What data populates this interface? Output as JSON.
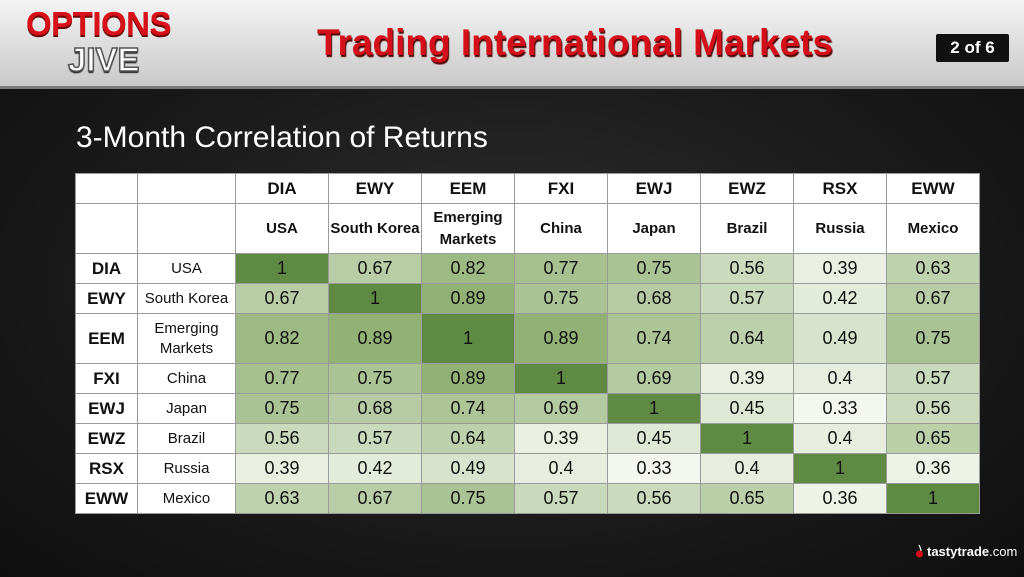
{
  "header": {
    "logo_line1": "OPTIONS",
    "logo_line2": "JIVE",
    "title": "Trading International Markets",
    "slide_counter": "2 of 6"
  },
  "subtitle": "3-Month Correlation of Returns",
  "footer": {
    "brand": "tastytrade",
    "brand_suffix": ".com"
  },
  "colors": {
    "title_red": "#d40f1a",
    "cell_high": "#5f8a44",
    "cell_low": "#f3f7ef"
  },
  "chart_data": {
    "type": "table",
    "title": "3-Month Correlation of Returns",
    "tickers": [
      "DIA",
      "EWY",
      "EEM",
      "FXI",
      "EWJ",
      "EWZ",
      "RSX",
      "EWW"
    ],
    "names": [
      "USA",
      "South Korea",
      "Emerging Markets",
      "China",
      "Japan",
      "Brazil",
      "Russia",
      "Mexico"
    ],
    "values": [
      [
        "1",
        "0.67",
        "0.82",
        "0.77",
        "0.75",
        "0.56",
        "0.39",
        "0.63"
      ],
      [
        "0.67",
        "1",
        "0.89",
        "0.75",
        "0.68",
        "0.57",
        "0.42",
        "0.67"
      ],
      [
        "0.82",
        "0.89",
        "1",
        "0.89",
        "0.74",
        "0.64",
        "0.49",
        "0.75"
      ],
      [
        "0.77",
        "0.75",
        "0.89",
        "1",
        "0.69",
        "0.39",
        "0.4",
        "0.57"
      ],
      [
        "0.75",
        "0.68",
        "0.74",
        "0.69",
        "1",
        "0.45",
        "0.33",
        "0.56"
      ],
      [
        "0.56",
        "0.57",
        "0.64",
        "0.39",
        "0.45",
        "1",
        "0.4",
        "0.65"
      ],
      [
        "0.39",
        "0.42",
        "0.49",
        "0.4",
        "0.33",
        "0.4",
        "1",
        "0.36"
      ],
      [
        "0.63",
        "0.67",
        "0.75",
        "0.57",
        "0.56",
        "0.65",
        "0.36",
        "1"
      ]
    ]
  }
}
